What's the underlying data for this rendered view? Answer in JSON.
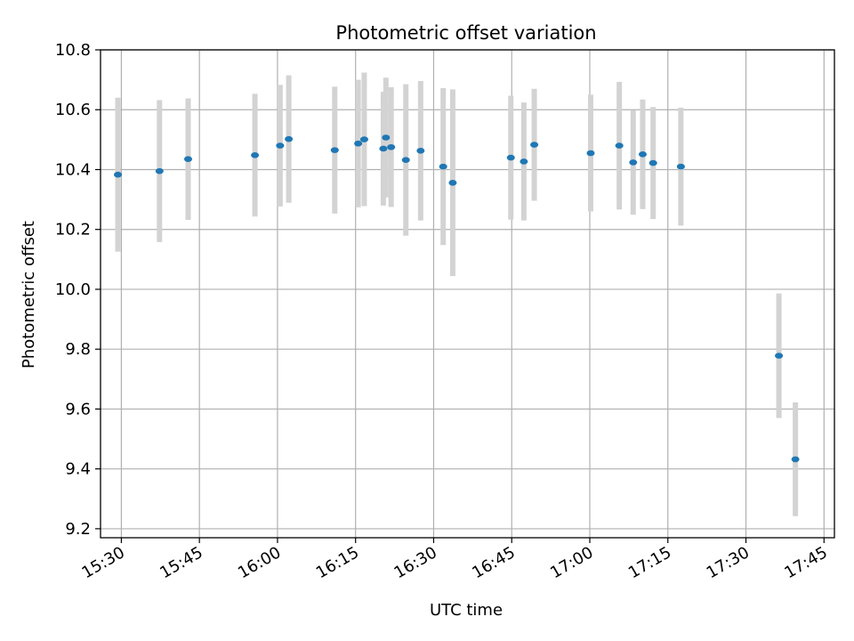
{
  "chart_data": {
    "type": "scatter",
    "title": "Photometric offset variation",
    "xlabel": "UTC time",
    "ylabel": "Photometric offset",
    "xlim": [
      "15:26",
      "17:47"
    ],
    "ylim": [
      9.17,
      10.8
    ],
    "x_ticks": [
      "15:30",
      "15:45",
      "16:00",
      "16:15",
      "16:30",
      "16:45",
      "17:00",
      "17:15",
      "17:30",
      "17:45"
    ],
    "y_ticks": [
      "9.2",
      "9.4",
      "9.6",
      "9.8",
      "10.0",
      "10.2",
      "10.4",
      "10.6",
      "10.8"
    ],
    "grid": true,
    "colors": {
      "point": "#1f77b4",
      "errorbar": "#d3d3d3",
      "grid": "#b0b0b0"
    },
    "points": [
      {
        "x": "15:29:20",
        "y": 10.383,
        "err": 0.257
      },
      {
        "x": "15:37:20",
        "y": 10.395,
        "err": 0.237
      },
      {
        "x": "15:42:50",
        "y": 10.435,
        "err": 0.203
      },
      {
        "x": "15:55:40",
        "y": 10.448,
        "err": 0.205
      },
      {
        "x": "16:00:30",
        "y": 10.48,
        "err": 0.203
      },
      {
        "x": "16:02:10",
        "y": 10.502,
        "err": 0.213
      },
      {
        "x": "16:11:00",
        "y": 10.465,
        "err": 0.212
      },
      {
        "x": "16:15:30",
        "y": 10.487,
        "err": 0.213
      },
      {
        "x": "16:16:40",
        "y": 10.501,
        "err": 0.223
      },
      {
        "x": "16:20:20",
        "y": 10.47,
        "err": 0.19
      },
      {
        "x": "16:20:50",
        "y": 10.507,
        "err": 0.2
      },
      {
        "x": "16:21:50",
        "y": 10.475,
        "err": 0.2
      },
      {
        "x": "16:24:40",
        "y": 10.432,
        "err": 0.253
      },
      {
        "x": "16:27:30",
        "y": 10.463,
        "err": 0.233
      },
      {
        "x": "16:31:50",
        "y": 10.41,
        "err": 0.262
      },
      {
        "x": "16:33:40",
        "y": 10.356,
        "err": 0.312
      },
      {
        "x": "16:44:50",
        "y": 10.44,
        "err": 0.207
      },
      {
        "x": "16:47:20",
        "y": 10.427,
        "err": 0.197
      },
      {
        "x": "16:49:20",
        "y": 10.483,
        "err": 0.187
      },
      {
        "x": "17:00:10",
        "y": 10.455,
        "err": 0.195
      },
      {
        "x": "17:05:40",
        "y": 10.48,
        "err": 0.213
      },
      {
        "x": "17:08:20",
        "y": 10.424,
        "err": 0.175
      },
      {
        "x": "17:10:10",
        "y": 10.451,
        "err": 0.183
      },
      {
        "x": "17:12:10",
        "y": 10.422,
        "err": 0.187
      },
      {
        "x": "17:17:30",
        "y": 10.41,
        "err": 0.197
      },
      {
        "x": "17:36:20",
        "y": 9.778,
        "err": 0.208
      },
      {
        "x": "17:39:30",
        "y": 9.432,
        "err": 0.19
      }
    ]
  }
}
